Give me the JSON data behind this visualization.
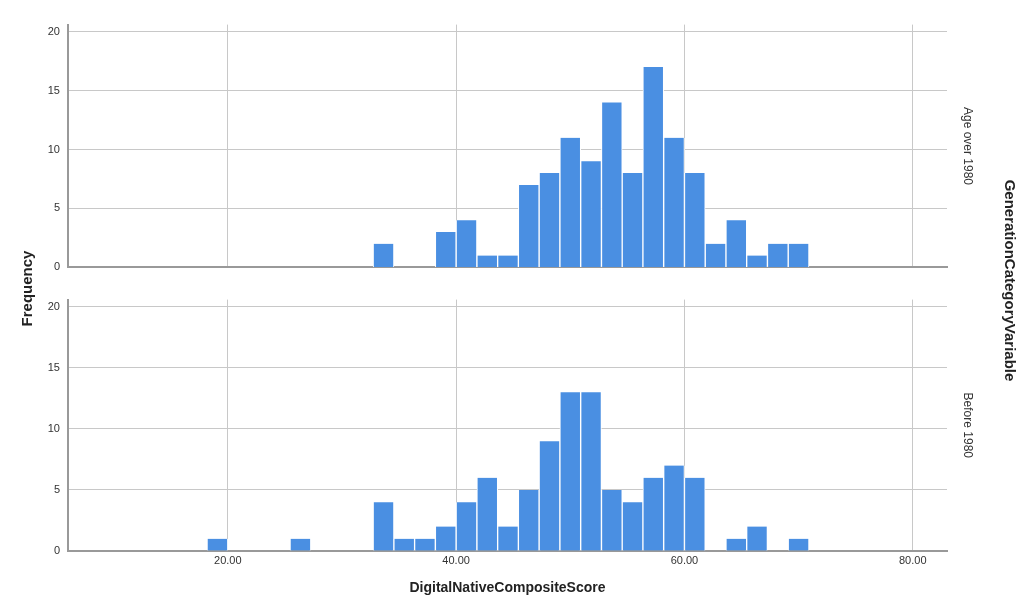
{
  "chart_data": [
    {
      "type": "histogram",
      "ylabel": "Frequency",
      "y2label": "Age over 1980",
      "annotations": [
        "GenerationCategoryVariable"
      ],
      "color": "#4a8fe2",
      "bins": [
        18.18,
        20,
        21.82,
        23.64,
        25.45,
        27.27,
        29.09,
        30.91,
        32.73,
        34.55,
        36.36,
        38.18,
        40,
        41.82,
        43.64,
        45.45,
        47.27,
        49.09,
        50.91,
        52.73,
        54.55,
        56.36,
        58.18,
        60,
        61.82,
        63.64,
        65.45,
        67.27,
        69.09,
        70.91
      ],
      "values": [
        0,
        0,
        0,
        0,
        0,
        0,
        0,
        0,
        2,
        0,
        0,
        3,
        4,
        1,
        1,
        7,
        8,
        11,
        9,
        14,
        8,
        17,
        11,
        8,
        2,
        4,
        1,
        2,
        2
      ],
      "xlim": [
        6,
        83
      ],
      "xticks": [
        {
          "value": 20,
          "label": null
        },
        {
          "value": 40,
          "label": null
        },
        {
          "value": 60,
          "label": null
        },
        {
          "value": 80,
          "label": null
        }
      ],
      "ylim": [
        0,
        20.6
      ],
      "yticks": [
        0,
        5,
        10,
        15,
        20
      ],
      "grid": true,
      "tick_labels": "y"
    },
    {
      "type": "histogram",
      "xlabel": "DigitalNativeCompositeScore",
      "y2label": "Before 1980",
      "color": "#4a8fe2",
      "bins": [
        18.18,
        20,
        21.82,
        23.64,
        25.45,
        27.27,
        29.09,
        30.91,
        32.73,
        34.55,
        36.36,
        38.18,
        40,
        41.82,
        43.64,
        45.45,
        47.27,
        49.09,
        50.91,
        52.73,
        54.55,
        56.36,
        58.18,
        60,
        61.82,
        63.64,
        65.45,
        67.27,
        69.09,
        70.91
      ],
      "values": [
        1,
        0,
        0,
        0,
        1,
        0,
        0,
        0,
        4,
        1,
        1,
        2,
        4,
        6,
        2,
        5,
        9,
        13,
        13,
        5,
        4,
        6,
        7,
        6,
        0,
        1,
        2,
        0,
        1
      ],
      "xlim": [
        6,
        83
      ],
      "xticks": [
        {
          "value": 20,
          "label": "20.00"
        },
        {
          "value": 40,
          "label": "40.00"
        },
        {
          "value": 60,
          "label": "60.00"
        },
        {
          "value": 80,
          "label": "80.00"
        }
      ],
      "ylim": [
        0,
        20.6
      ],
      "yticks": [
        0,
        5,
        10,
        15,
        20
      ],
      "grid": true
    }
  ]
}
